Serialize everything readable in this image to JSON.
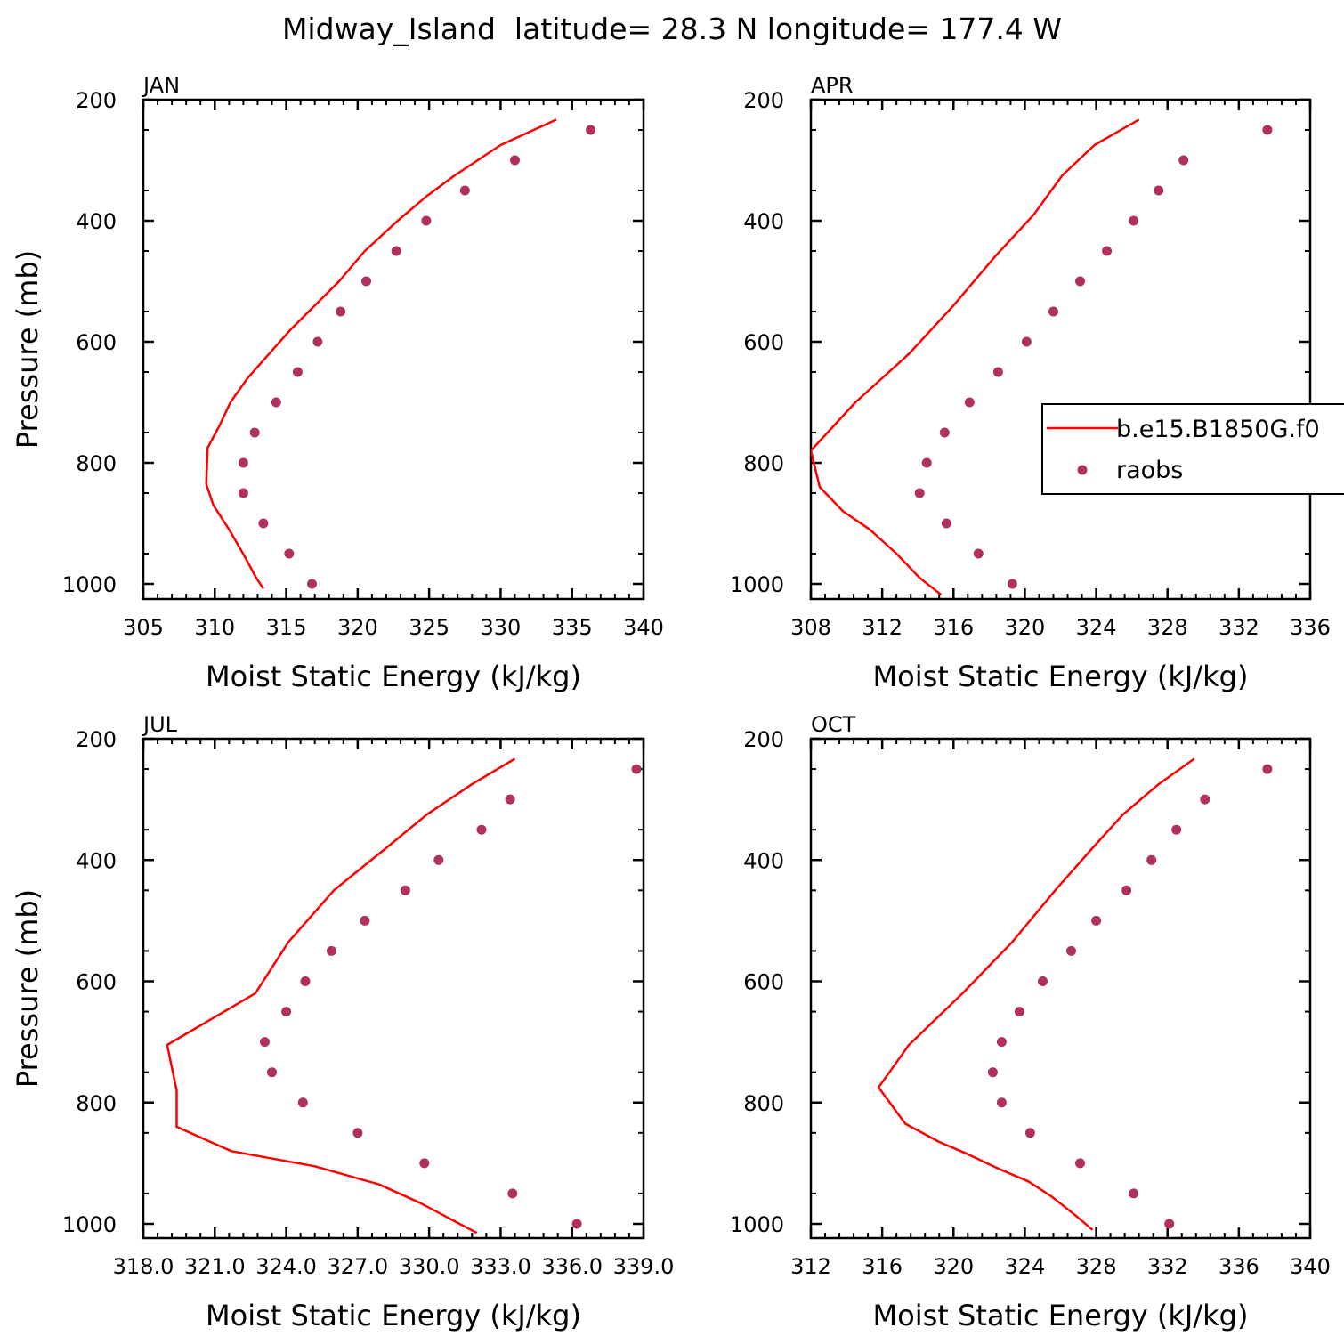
{
  "page_title": "Midway_Island  latitude= 28.3 N longitude= 177.4 W",
  "chart_data": [
    {
      "type": "line",
      "panel_label": "JAN",
      "xlabel": "Moist Static Energy (kJ/kg)",
      "ylabel": "Pressure (mb)",
      "xlim": [
        305,
        340
      ],
      "ylim": [
        200,
        1000
      ],
      "y_reversed": true,
      "x_ticks": [
        "305",
        "310",
        "315",
        "320",
        "325",
        "330",
        "335",
        "340"
      ],
      "x_tick_values": [
        305,
        310,
        315,
        320,
        325,
        330,
        335,
        340
      ],
      "y_ticks": [
        "200",
        "400",
        "600",
        "800",
        "1000"
      ],
      "y_tick_values": [
        200,
        400,
        600,
        800,
        1000
      ],
      "series": [
        {
          "name": "b.e15.B1850G.f0",
          "kind": "line",
          "color": "#ff0000",
          "x": [
            333.9,
            330.0,
            326.8,
            324.8,
            322.8,
            320.5,
            318.7,
            317.0,
            315.3,
            313.8,
            312.3,
            311.1,
            310.3,
            309.5,
            309.4,
            309.9,
            311.0,
            312.1,
            312.9,
            313.4
          ],
          "y": [
            233,
            275,
            325,
            360,
            400,
            450,
            500,
            540,
            580,
            620,
            660,
            700,
            740,
            775,
            835,
            870,
            910,
            955,
            990,
            1008
          ]
        },
        {
          "name": "raobs",
          "kind": "scatter",
          "color": "#b03060",
          "x": [
            336.3,
            331.0,
            327.5,
            324.8,
            322.7,
            320.6,
            318.8,
            317.2,
            315.8,
            314.3,
            312.8,
            312.0,
            312.0,
            313.4,
            315.2,
            316.8
          ],
          "y": [
            250,
            300,
            350,
            400,
            450,
            500,
            550,
            600,
            650,
            700,
            750,
            800,
            850,
            900,
            950,
            1000
          ]
        }
      ]
    },
    {
      "type": "line",
      "panel_label": "APR",
      "xlabel": "Moist Static Energy (kJ/kg)",
      "ylabel": "",
      "xlim": [
        308,
        336
      ],
      "ylim": [
        200,
        1000
      ],
      "y_reversed": true,
      "x_ticks": [
        "308",
        "312",
        "316",
        "320",
        "324",
        "328",
        "332",
        "336"
      ],
      "x_tick_values": [
        308,
        312,
        316,
        320,
        324,
        328,
        332,
        336
      ],
      "y_ticks": [
        "200",
        "400",
        "600",
        "800",
        "1000"
      ],
      "y_tick_values": [
        200,
        400,
        600,
        800,
        1000
      ],
      "series": [
        {
          "name": "b.e15.B1850G.f0",
          "kind": "line",
          "color": "#ff0000",
          "x": [
            326.4,
            323.9,
            322.1,
            320.5,
            318.3,
            316.0,
            313.5,
            310.5,
            308.0,
            308.5,
            309.8,
            311.3,
            312.8,
            314.1,
            315.3
          ],
          "y": [
            233,
            275,
            325,
            390,
            460,
            540,
            620,
            700,
            780,
            840,
            880,
            910,
            950,
            990,
            1018
          ]
        },
        {
          "name": "raobs",
          "kind": "scatter",
          "color": "#b03060",
          "x": [
            333.6,
            328.9,
            327.5,
            326.1,
            324.6,
            323.1,
            321.6,
            320.1,
            318.5,
            316.9,
            315.5,
            314.5,
            314.1,
            315.6,
            317.4,
            319.3
          ],
          "y": [
            250,
            300,
            350,
            400,
            450,
            500,
            550,
            600,
            650,
            700,
            750,
            800,
            850,
            900,
            950,
            1000
          ]
        }
      ],
      "legend": {
        "placement": "right-middle",
        "entries": [
          "b.e15.B1850G.f0",
          "raobs"
        ]
      }
    },
    {
      "type": "line",
      "panel_label": "JUL",
      "xlabel": "Moist Static Energy (kJ/kg)",
      "ylabel": "Pressure (mb)",
      "xlim": [
        318.0,
        339.0
      ],
      "ylim": [
        200,
        1000
      ],
      "y_reversed": true,
      "x_ticks": [
        "318.0",
        "321.0",
        "324.0",
        "327.0",
        "330.0",
        "333.0",
        "336.0",
        "339.0"
      ],
      "x_tick_values": [
        318.0,
        321.0,
        324.0,
        327.0,
        330.0,
        333.0,
        336.0,
        339.0
      ],
      "y_ticks": [
        "200",
        "400",
        "600",
        "800",
        "1000"
      ],
      "y_tick_values": [
        200,
        400,
        600,
        800,
        1000
      ],
      "series": [
        {
          "name": "b.e15.B1850G.f0",
          "kind": "line",
          "color": "#ff0000",
          "x": [
            333.6,
            331.8,
            329.9,
            328.2,
            326.0,
            324.1,
            322.7,
            319.0,
            319.4,
            319.4,
            321.7,
            325.2,
            327.9,
            329.6,
            330.8,
            332.0
          ],
          "y": [
            233,
            275,
            325,
            380,
            450,
            535,
            620,
            705,
            780,
            840,
            880,
            905,
            935,
            965,
            990,
            1015
          ]
        },
        {
          "name": "raobs",
          "kind": "scatter",
          "color": "#b03060",
          "x": [
            338.7,
            333.4,
            332.2,
            330.4,
            329.0,
            327.3,
            325.9,
            324.8,
            324.0,
            323.1,
            323.4,
            324.7,
            327.0,
            329.8,
            333.5,
            336.2
          ],
          "y": [
            250,
            300,
            350,
            400,
            450,
            500,
            550,
            600,
            650,
            700,
            750,
            800,
            850,
            900,
            950,
            1000
          ]
        }
      ]
    },
    {
      "type": "line",
      "panel_label": "OCT",
      "xlabel": "Moist Static Energy (kJ/kg)",
      "ylabel": "",
      "xlim": [
        312,
        340
      ],
      "ylim": [
        200,
        1000
      ],
      "y_reversed": true,
      "x_ticks": [
        "312",
        "316",
        "320",
        "324",
        "328",
        "332",
        "336",
        "340"
      ],
      "x_tick_values": [
        312,
        316,
        320,
        324,
        328,
        332,
        336,
        340
      ],
      "y_ticks": [
        "200",
        "400",
        "600",
        "800",
        "1000"
      ],
      "y_tick_values": [
        200,
        400,
        600,
        800,
        1000
      ],
      "series": [
        {
          "name": "b.e15.B1850G.f0",
          "kind": "line",
          "color": "#ff0000",
          "x": [
            333.5,
            331.5,
            329.5,
            327.8,
            325.7,
            323.3,
            320.5,
            317.5,
            315.8,
            317.3,
            319.2,
            320.8,
            322.6,
            324.2,
            325.5,
            326.8,
            327.8
          ],
          "y": [
            233,
            275,
            325,
            380,
            450,
            535,
            620,
            705,
            775,
            835,
            865,
            885,
            910,
            930,
            955,
            985,
            1010
          ]
        },
        {
          "name": "raobs",
          "kind": "scatter",
          "color": "#b03060",
          "x": [
            337.6,
            334.1,
            332.5,
            331.1,
            329.7,
            328.0,
            326.6,
            325.0,
            323.7,
            322.7,
            322.2,
            322.7,
            324.3,
            327.1,
            330.1,
            332.1
          ],
          "y": [
            250,
            300,
            350,
            400,
            450,
            500,
            550,
            600,
            650,
            700,
            750,
            800,
            850,
            900,
            950,
            1000
          ]
        }
      ]
    }
  ]
}
